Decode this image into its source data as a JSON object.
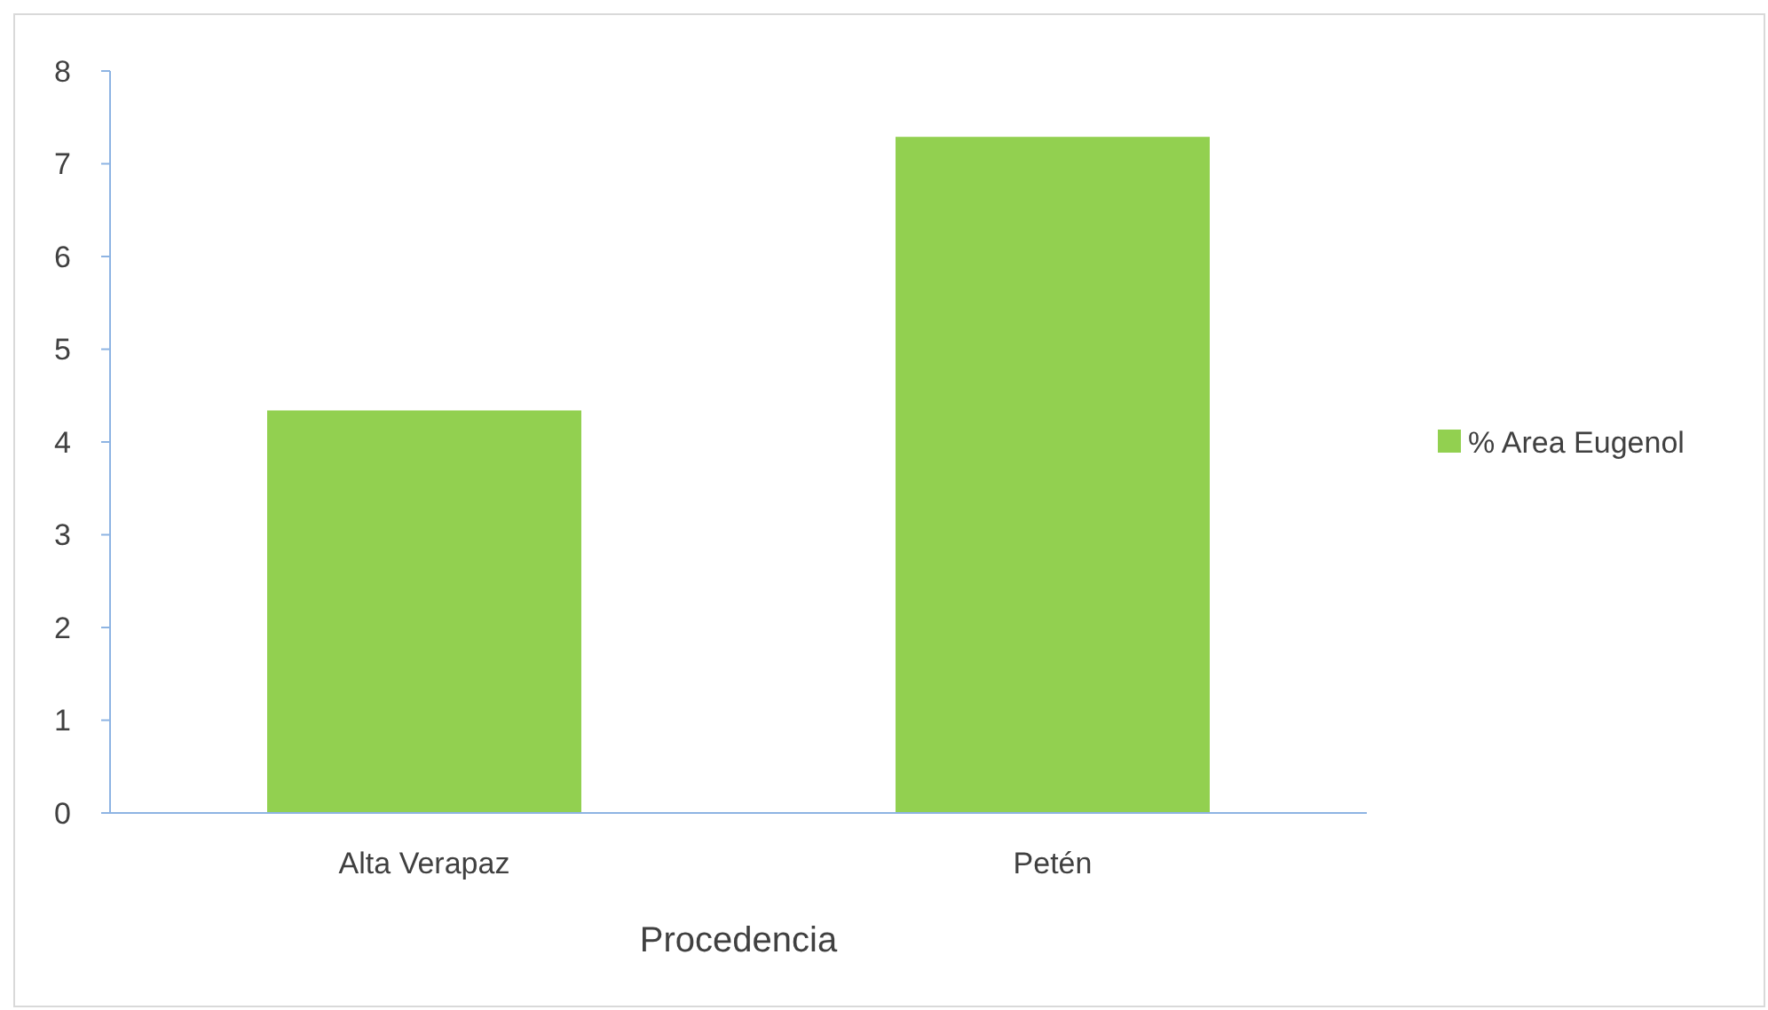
{
  "chart_data": {
    "type": "bar",
    "xlabel": "Procedencia",
    "categories": [
      "Alta Verapaz",
      "Petén"
    ],
    "series": [
      {
        "name": "% Area Eugenol",
        "color": "#92d050",
        "values": [
          4.34,
          7.29
        ]
      }
    ],
    "ylim": [
      0,
      8
    ],
    "yticks": [
      0,
      1,
      2,
      3,
      4,
      5,
      6,
      7,
      8
    ],
    "grid": false,
    "legend": "right"
  }
}
